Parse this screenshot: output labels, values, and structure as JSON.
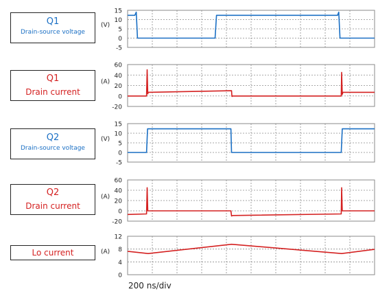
{
  "colors": {
    "voltage": "#1a6fc4",
    "current": "#d42020",
    "grid": "#8a8a8a",
    "text": "#222222"
  },
  "timebase": "200 ns/div",
  "chart_data": [
    {
      "type": "line",
      "label_title": "Q1",
      "label_sub": "Drain-source voltage",
      "unit": "(V)",
      "color_key": "voltage",
      "ylim": [
        -5,
        15
      ],
      "yticks": [
        15,
        10,
        5,
        0,
        -5
      ],
      "x_divisions": 10,
      "grid": true,
      "x": [
        0,
        0.35,
        0.42,
        0.48,
        4.18,
        4.25,
        4.32,
        10.2,
        10.26,
        10.32,
        12
      ],
      "y": [
        12.3,
        12.3,
        14.0,
        0,
        0,
        0,
        12.3,
        12.3,
        14.0,
        0,
        0
      ]
    },
    {
      "type": "line",
      "label_title": "Q1",
      "label_sub": "Drain current",
      "unit": "(A)",
      "color_key": "current",
      "ylim": [
        -20,
        60
      ],
      "yticks": [
        60,
        40,
        20,
        0,
        -20
      ],
      "x_divisions": 10,
      "grid": true,
      "x": [
        0,
        0.92,
        0.95,
        0.98,
        1.0,
        5.05,
        5.07,
        5.1,
        10.38,
        10.4,
        10.43,
        10.46,
        12
      ],
      "y": [
        0,
        0,
        50,
        4,
        7,
        10,
        -1,
        0,
        0,
        45,
        3,
        7,
        7
      ]
    },
    {
      "type": "line",
      "label_title": "Q2",
      "label_sub": "Drain-source voltage",
      "unit": "(V)",
      "color_key": "voltage",
      "ylim": [
        -5,
        15
      ],
      "yticks": [
        15,
        10,
        5,
        0,
        -5
      ],
      "x_divisions": 10,
      "grid": true,
      "x": [
        0,
        0.92,
        0.97,
        1.0,
        5.02,
        5.05,
        5.1,
        10.38,
        10.43,
        10.46,
        12
      ],
      "y": [
        0,
        0,
        12.3,
        12.3,
        12.3,
        0,
        0,
        0,
        12.3,
        12.3,
        12.3
      ]
    },
    {
      "type": "line",
      "label_title": "Q2",
      "label_sub": "Drain current",
      "unit": "(A)",
      "color_key": "current",
      "ylim": [
        -20,
        60
      ],
      "yticks": [
        60,
        40,
        20,
        0,
        -20
      ],
      "x_divisions": 10,
      "grid": true,
      "x": [
        0,
        0.92,
        0.95,
        0.98,
        5.02,
        5.05,
        5.1,
        10.38,
        10.4,
        10.43,
        12
      ],
      "y": [
        -7,
        -6,
        45,
        0,
        0,
        -10,
        -9,
        -6,
        45,
        0,
        0
      ]
    },
    {
      "type": "line",
      "label_title": "Lo current",
      "label_sub": "",
      "unit": "(A)",
      "color_key": "current",
      "ylim": [
        0,
        12
      ],
      "yticks": [
        12,
        8,
        4,
        0
      ],
      "x_divisions": 10,
      "grid": true,
      "x": [
        0,
        1.0,
        5.05,
        10.4,
        12
      ],
      "y": [
        7.3,
        6.6,
        9.5,
        6.6,
        7.9
      ]
    }
  ]
}
